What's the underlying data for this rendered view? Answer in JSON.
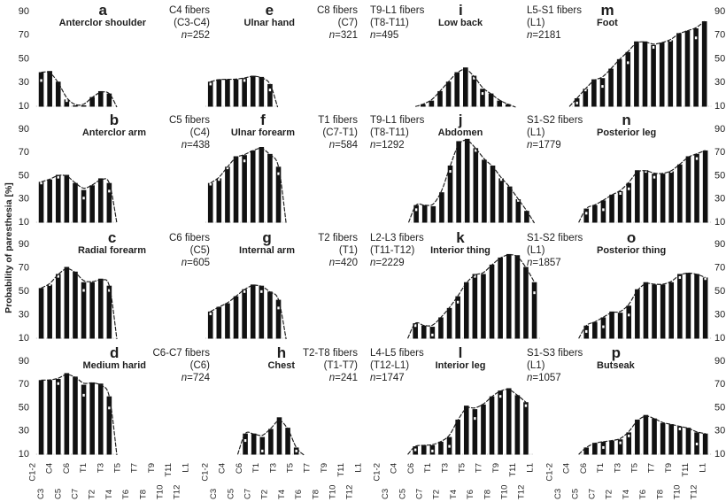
{
  "chart_data": {
    "type": "bar",
    "title": "",
    "ylabel": "Probability of paresthesia [%]",
    "xlabel": "",
    "ylim": [
      10,
      90
    ],
    "yticks": [
      90,
      70,
      50,
      30,
      10
    ],
    "grid": false,
    "legend": "none",
    "x_categories": [
      "C1-2",
      "C3",
      "C4",
      "C5",
      "C6",
      "C7",
      "T1",
      "T2",
      "T3",
      "T4",
      "T5",
      "T6",
      "T7",
      "T8",
      "T9",
      "T10",
      "T11",
      "T12",
      "L1"
    ],
    "sample_symbol": "n",
    "sample_sep": "=",
    "panels": [
      {
        "id": "a",
        "region": "Anterclor shoulder",
        "fibers": "C4 fibers",
        "segments": "(C3-C4)",
        "n": "252",
        "x_start": 1.1,
        "values": [
          38,
          39,
          30,
          15,
          10,
          10,
          17,
          22,
          20
        ],
        "dots": [
          31,
          null,
          null,
          14,
          null,
          null,
          null,
          null,
          null
        ],
        "curve_starts_at_baseline": false,
        "curve_ends_at_baseline": true
      },
      {
        "id": "b",
        "region": "Anterclor arm",
        "fibers": "C5 fibers",
        "segments": "(C4)",
        "n": "438",
        "x_start": 1.1,
        "values": [
          44,
          46,
          50,
          50,
          43,
          37,
          41,
          47,
          43
        ],
        "dots": [
          43,
          null,
          48,
          null,
          null,
          30,
          null,
          null,
          36
        ],
        "curve_starts_at_baseline": false,
        "curve_ends_at_baseline": true
      },
      {
        "id": "c",
        "region": "Radial forearm",
        "fibers": "C6 fibers",
        "segments": "(C5)",
        "n": "605",
        "x_start": 1.1,
        "values": [
          52,
          55,
          64,
          70,
          66,
          57,
          57,
          60,
          54
        ],
        "dots": [
          null,
          55,
          62,
          null,
          null,
          50,
          null,
          null,
          50
        ],
        "curve_starts_at_baseline": false,
        "curve_ends_at_baseline": true
      },
      {
        "id": "d",
        "region": "Medium harid",
        "fibers": "C6-C7 fibers",
        "segments": "(C6)",
        "n": "724",
        "x_start": 1.1,
        "values": [
          73,
          73,
          74,
          79,
          76,
          69,
          71,
          70,
          59
        ],
        "dots": [
          null,
          null,
          70,
          null,
          null,
          60,
          null,
          null,
          49
        ],
        "curve_starts_at_baseline": false,
        "curve_ends_at_baseline": true
      },
      {
        "id": "e",
        "region": "Ulnar hand",
        "fibers": "C8 fibers",
        "segments": "(C7)",
        "n": "321",
        "x_start": 0.7,
        "values": [
          30,
          32,
          32,
          32,
          33,
          35,
          34,
          28
        ],
        "dots": [
          28,
          null,
          null,
          null,
          31,
          null,
          null,
          23
        ],
        "curve_starts_at_baseline": false,
        "curve_ends_at_baseline": true
      },
      {
        "id": "f",
        "region": "Ulnar forearm",
        "fibers": "T1 fibers",
        "segments": "(C7-T1)",
        "n": "584",
        "x_start": 0.7,
        "values": [
          43,
          47,
          57,
          66,
          67,
          71,
          74,
          68,
          57
        ],
        "dots": [
          42,
          46,
          56,
          null,
          62,
          null,
          null,
          null,
          51
        ],
        "curve_starts_at_baseline": false,
        "curve_ends_at_baseline": true
      },
      {
        "id": "g",
        "region": "Internal arm",
        "fibers": "T2 fibers",
        "segments": "(T1)",
        "n": "420",
        "x_start": 0.7,
        "values": [
          32,
          36,
          39,
          45,
          51,
          55,
          54,
          49,
          42
        ],
        "dots": [
          30,
          null,
          null,
          null,
          49,
          null,
          49,
          null,
          35
        ],
        "curve_starts_at_baseline": false,
        "curve_ends_at_baseline": true
      },
      {
        "id": "h",
        "region": "Chest",
        "fibers": "T2-T8 fibers",
        "segments": "(T1-T7)",
        "n": "241",
        "x_start": 4.8,
        "values": [
          27,
          27,
          24,
          31,
          41,
          32,
          15
        ],
        "dots": [
          21,
          null,
          12,
          null,
          null,
          null,
          12
        ],
        "curve_starts_at_baseline": true,
        "curve_ends_at_baseline": true
      },
      {
        "id": "i",
        "region": "Low back",
        "fibers": "T9-L1 fibers",
        "segments": "(T8-T11)",
        "n": "495",
        "x_start": 5.5,
        "values": [
          11,
          14,
          22,
          30,
          38,
          42,
          35,
          24,
          20,
          14,
          11
        ],
        "dots": [
          null,
          null,
          null,
          null,
          null,
          null,
          33,
          20,
          null,
          null,
          null
        ],
        "curve_starts_at_baseline": true,
        "curve_ends_at_baseline": true
      },
      {
        "id": "j",
        "region": "Abdomen",
        "fibers": "T9-L1 fibers",
        "segments": "(T8-T11)",
        "n": "1292",
        "x_start": 4.7,
        "values": [
          24,
          24,
          23,
          35,
          58,
          79,
          81,
          73,
          63,
          58,
          47,
          40,
          29,
          19
        ],
        "dots": [
          20,
          null,
          null,
          null,
          53,
          null,
          null,
          71,
          null,
          null,
          46,
          null,
          28,
          null
        ],
        "curve_starts_at_baseline": true,
        "curve_ends_at_baseline": true
      },
      {
        "id": "k",
        "region": "Interior thing",
        "fibers": "L2-L3 fibers",
        "segments": "(T11-T12)",
        "n": "2229",
        "x_start": 4.6,
        "values": [
          22,
          20,
          19,
          27,
          35,
          45,
          57,
          64,
          64,
          72,
          78,
          81,
          80,
          70,
          57
        ],
        "dots": [
          20,
          null,
          12,
          null,
          null,
          40,
          null,
          62,
          null,
          null,
          null,
          null,
          null,
          null,
          48
        ],
        "curve_starts_at_baseline": true,
        "curve_ends_at_baseline": false
      },
      {
        "id": "l",
        "region": "Interior leg",
        "fibers": "L4-L5 fibers",
        "segments": "(T12-L1)",
        "n": "1747",
        "x_start": 4.6,
        "values": [
          16,
          17,
          17,
          20,
          24,
          39,
          51,
          48,
          52,
          59,
          64,
          66,
          60,
          54
        ],
        "dots": [
          13,
          null,
          12,
          null,
          16,
          null,
          null,
          40,
          null,
          null,
          59,
          null,
          null,
          51
        ],
        "curve_starts_at_baseline": true,
        "curve_ends_at_baseline": false
      },
      {
        "id": "m",
        "region": "Foot",
        "fibers": "L5-S1 fibers",
        "segments": "(L1)",
        "n": "2181",
        "x_start": 3.3,
        "values": [
          16,
          24,
          32,
          33,
          41,
          49,
          55,
          64,
          64,
          61,
          63,
          65,
          71,
          73,
          75,
          81
        ],
        "dots": [
          12,
          23,
          null,
          26,
          null,
          null,
          46,
          null,
          null,
          59,
          null,
          65,
          null,
          null,
          67,
          null
        ],
        "curve_starts_at_baseline": true,
        "curve_ends_at_baseline": false
      },
      {
        "id": "n",
        "region": "Posterior leg",
        "fibers": "S1-S2 fibers",
        "segments": "(L1)",
        "n": "1779",
        "x_start": 4.4,
        "values": [
          21,
          24,
          28,
          33,
          36,
          43,
          54,
          54,
          51,
          51,
          53,
          59,
          66,
          68,
          71
        ],
        "dots": [
          17,
          null,
          20,
          null,
          34,
          38,
          null,
          53,
          48,
          null,
          53,
          null,
          null,
          64,
          null
        ],
        "curve_starts_at_baseline": true,
        "curve_ends_at_baseline": false
      },
      {
        "id": "o",
        "region": "Posterior thing",
        "fibers": "S1-S2 fibers",
        "segments": "(L1)",
        "n": "1857",
        "x_start": 4.4,
        "values": [
          20,
          23,
          27,
          32,
          31,
          37,
          51,
          57,
          55,
          55,
          57,
          64,
          65,
          64,
          61
        ],
        "dots": [
          15,
          null,
          19,
          null,
          null,
          29,
          null,
          null,
          null,
          null,
          null,
          61,
          null,
          null,
          60
        ],
        "curve_starts_at_baseline": true,
        "curve_ends_at_baseline": false
      },
      {
        "id": "p",
        "region": "Butseak",
        "fibers": "S1-S3 fibers",
        "segments": "(L1)",
        "n": "1057",
        "x_start": 4.4,
        "values": [
          15,
          19,
          20,
          21,
          22,
          28,
          39,
          43,
          40,
          36,
          35,
          33,
          32,
          28,
          27
        ],
        "dots": [
          null,
          null,
          15,
          null,
          19,
          25,
          null,
          null,
          null,
          null,
          null,
          31,
          null,
          18,
          null
        ],
        "curve_starts_at_baseline": true,
        "curve_ends_at_baseline": false
      }
    ]
  }
}
